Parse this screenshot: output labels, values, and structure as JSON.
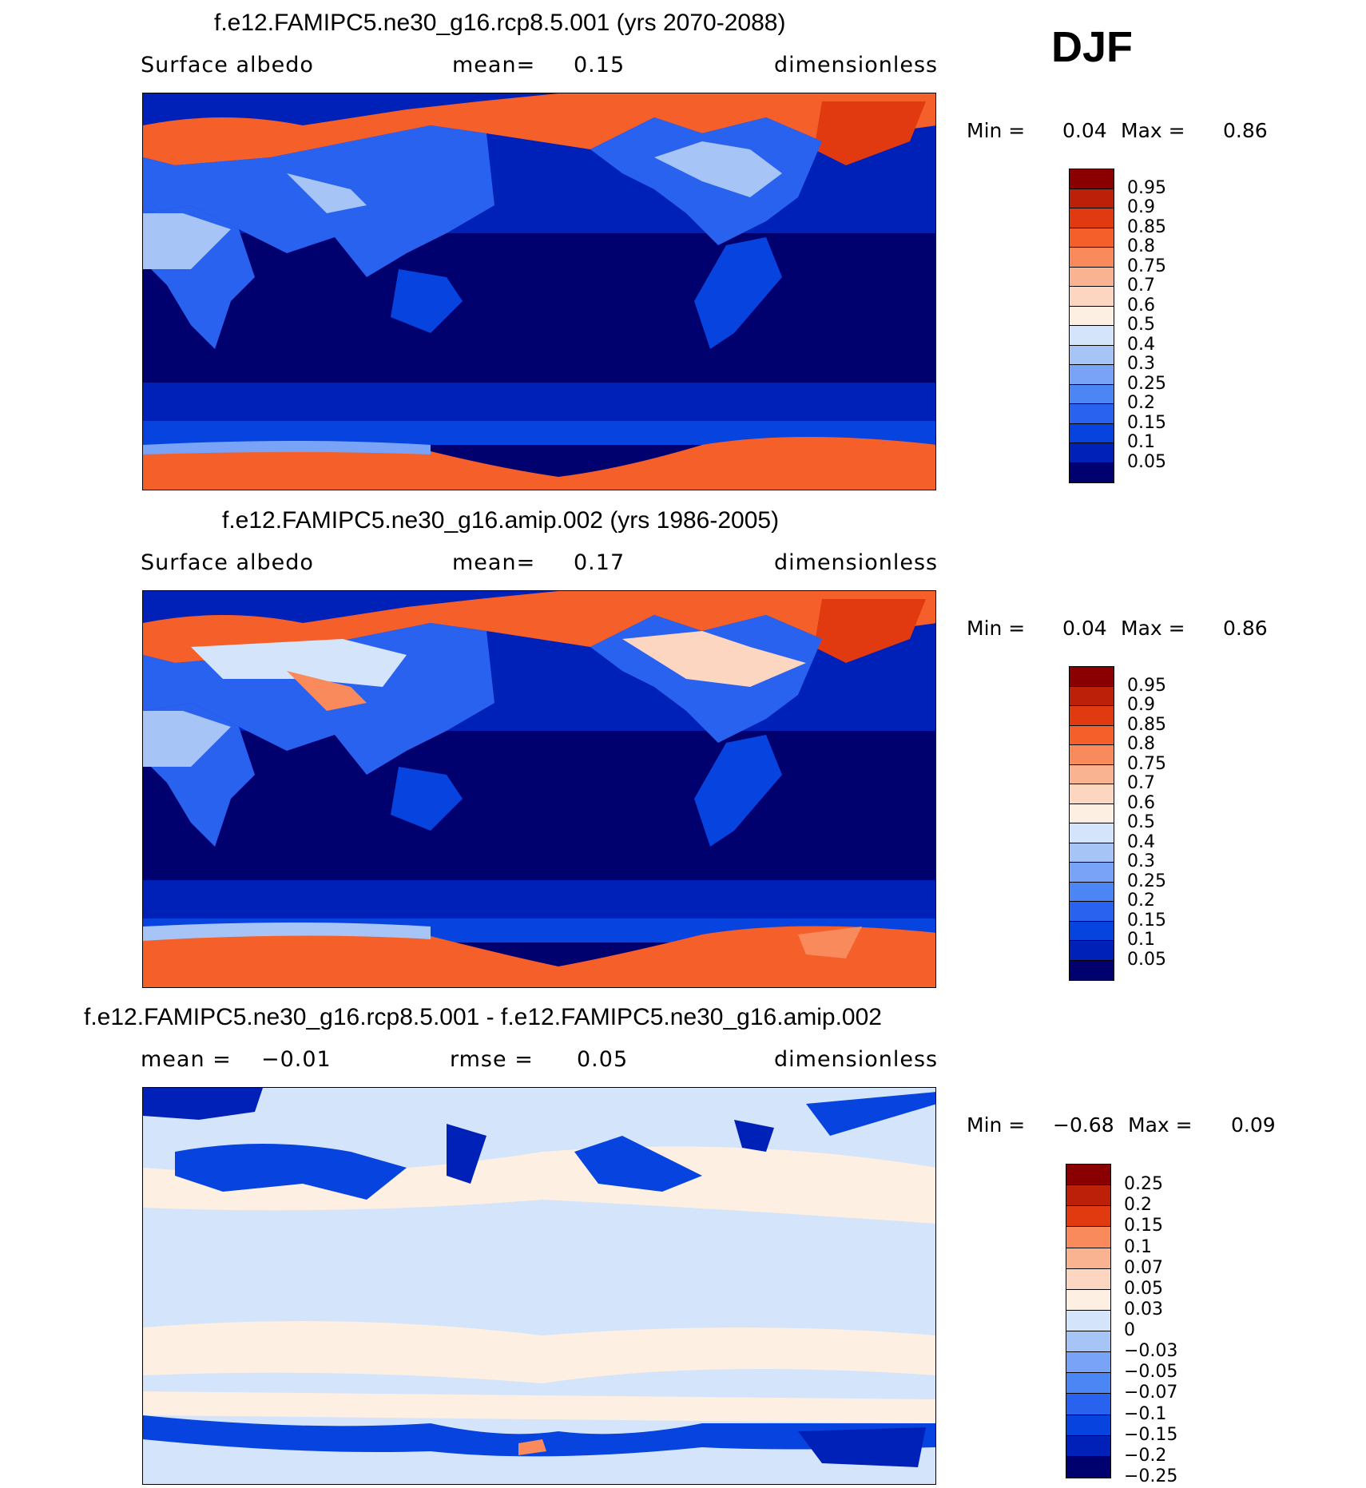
{
  "season": "DJF",
  "colors": {
    "abs_scale": [
      "#00006e",
      "#0021b7",
      "#0743de",
      "#2a62f0",
      "#4c86f5",
      "#78a3f6",
      "#a6c4f5",
      "#d4e4fa",
      "#fdefe2",
      "#fcd6c0",
      "#f9b391",
      "#f88a5b",
      "#f55f2a",
      "#e23a10",
      "#bd2008",
      "#8a0000"
    ],
    "diff_scale": [
      "#00006e",
      "#0021b7",
      "#0743de",
      "#2a62f0",
      "#4c86f5",
      "#78a3f6",
      "#a6c4f5",
      "#d4e4fa",
      "#fdefe2",
      "#fcd6c0",
      "#f9b391",
      "#f88a5b",
      "#e23a10",
      "#bd2008",
      "#8a0000"
    ]
  },
  "panels": [
    {
      "title": "f.e12.FAMIPC5.ne30_g16.rcp8.5.001 (yrs 2070-2088)",
      "left_label": "Surface  albedo",
      "center_label": "mean=",
      "center_value": "0.15",
      "right_label": "dimensionless",
      "min_label": "Min  =",
      "min_value": "0.04",
      "max_label": "Max  =",
      "max_value": "0.86",
      "scale": "abs",
      "levels": [
        "0.95",
        "0.9",
        "0.85",
        "0.8",
        "0.75",
        "0.7",
        "0.6",
        "0.5",
        "0.4",
        "0.3",
        "0.25",
        "0.2",
        "0.15",
        "0.1",
        "0.05"
      ]
    },
    {
      "title": "f.e12.FAMIPC5.ne30_g16.amip.002 (yrs 1986-2005)",
      "left_label": "Surface  albedo",
      "center_label": "mean=",
      "center_value": "0.17",
      "right_label": "dimensionless",
      "min_label": "Min  =",
      "min_value": "0.04",
      "max_label": "Max  =",
      "max_value": "0.86",
      "scale": "abs",
      "levels": [
        "0.95",
        "0.9",
        "0.85",
        "0.8",
        "0.75",
        "0.7",
        "0.6",
        "0.5",
        "0.4",
        "0.3",
        "0.25",
        "0.2",
        "0.15",
        "0.1",
        "0.05"
      ]
    },
    {
      "title": "f.e12.FAMIPC5.ne30_g16.rcp8.5.001 - f.e12.FAMIPC5.ne30_g16.amip.002",
      "left_label": "mean  =",
      "left_value": "−0.01",
      "center_label": "rmse  =",
      "center_value": "0.05",
      "right_label": "dimensionless",
      "min_label": "Min  =",
      "min_value": "−0.68",
      "max_label": "Max  =",
      "max_value": "0.09",
      "scale": "diff",
      "levels": [
        "0.25",
        "0.2",
        "0.15",
        "0.1",
        "0.07",
        "0.05",
        "0.03",
        "0",
        "−0.03",
        "−0.05",
        "−0.07",
        "−0.1",
        "−0.15",
        "−0.2",
        "−0.25"
      ]
    }
  ]
}
